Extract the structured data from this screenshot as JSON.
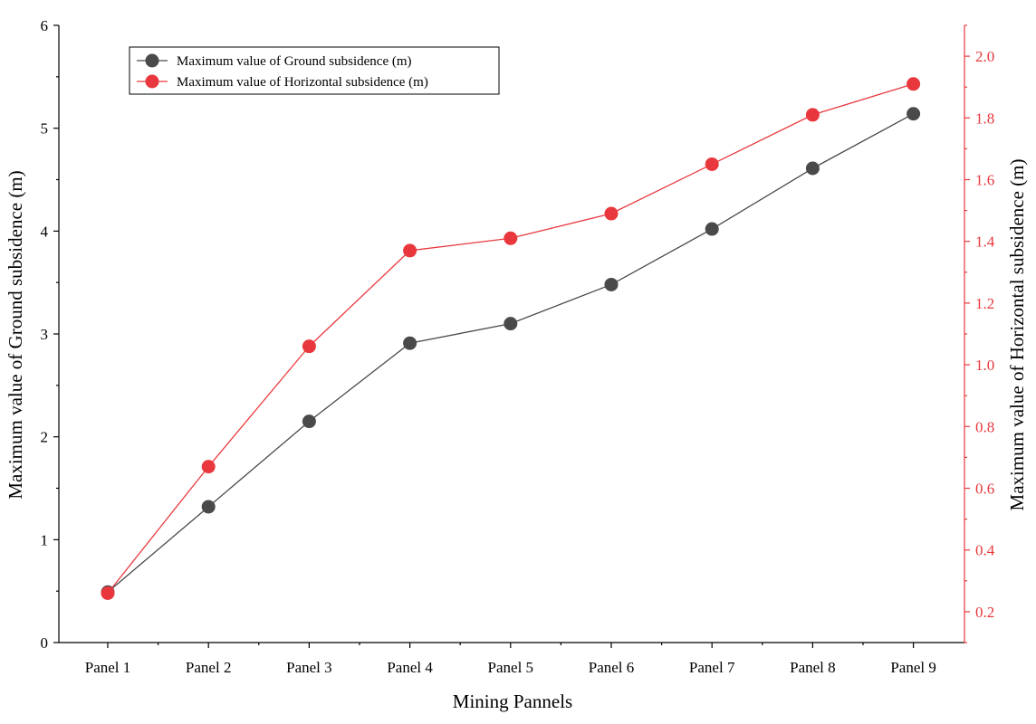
{
  "chart_data": {
    "type": "line",
    "xlabel": "Mining Pannels",
    "ylabel": "Maximum value of Ground subsidence (m)",
    "y2label": "Maximum value of Horizontal subsidence (m)",
    "categories": [
      "Panel 1",
      "Panel 2",
      "Panel 3",
      "Panel 4",
      "Panel 5",
      "Panel 6",
      "Panel 7",
      "Panel 8",
      "Panel 9"
    ],
    "ylim": [
      0,
      6
    ],
    "yticks": [
      "0",
      "1",
      "2",
      "3",
      "4",
      "5",
      "6"
    ],
    "y2lim": [
      0.1,
      2.1
    ],
    "y2ticks": [
      "0.2",
      "0.4",
      "0.6",
      "0.8",
      "1.0",
      "1.2",
      "1.4",
      "1.6",
      "1.8",
      "2.0"
    ],
    "grid": false,
    "legend_position": "top-left",
    "series": [
      {
        "name": "Maximum value of Ground subsidence (m)",
        "axis": "left",
        "color": "#4a4a4a",
        "values": [
          0.49,
          1.32,
          2.15,
          2.91,
          3.1,
          3.48,
          4.02,
          4.61,
          5.14
        ]
      },
      {
        "name": "Maximum value of Horizontal subsidence (m)",
        "axis": "right",
        "color": "#e8383d",
        "values": [
          0.26,
          0.67,
          1.06,
          1.37,
          1.41,
          1.49,
          1.65,
          1.81,
          1.91
        ]
      }
    ]
  }
}
